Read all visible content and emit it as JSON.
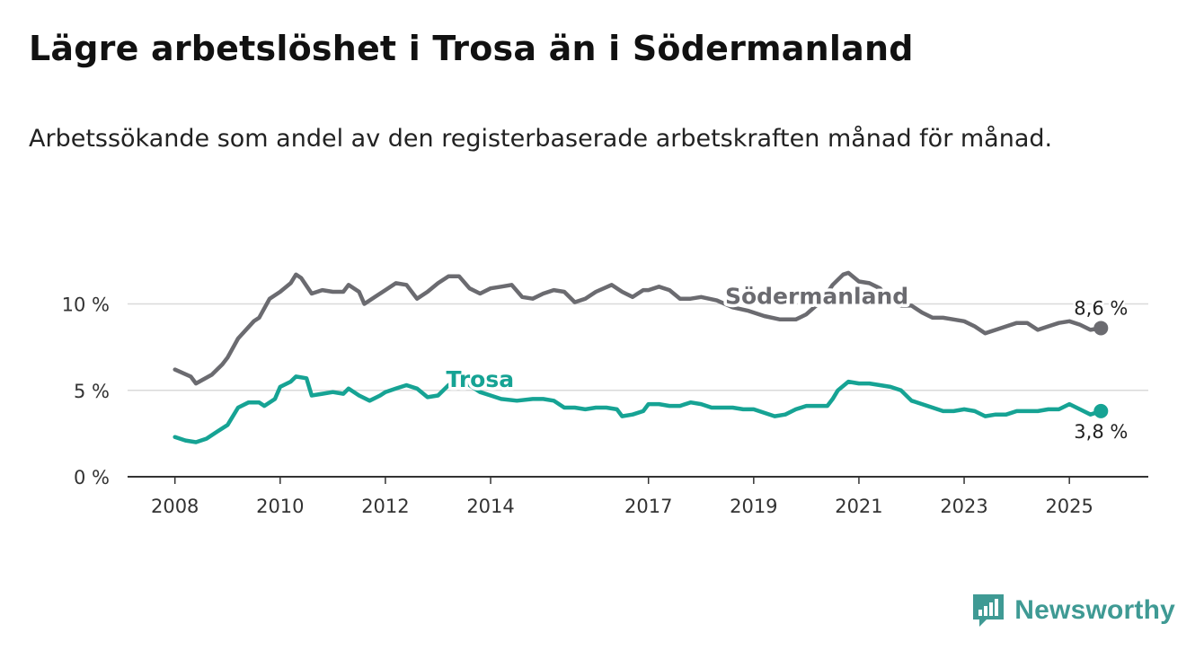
{
  "header": {
    "title": "Lägre arbetslöshet i Trosa än i Södermanland",
    "subtitle": "Arbetssökande som andel av den registerbaserade arbetskraften månad för månad."
  },
  "brand": {
    "name": "Newsworthy",
    "icon": "newsworthy-chart-icon",
    "color": "#3f9a94"
  },
  "chart_data": {
    "type": "line",
    "title": "Lägre arbetslöshet i Trosa än i Södermanland",
    "subtitle": "Arbetssökande som andel av den registerbaserade arbetskraften månad för månad.",
    "xlabel": "",
    "ylabel": "",
    "x_ticks": [
      2008,
      2010,
      2012,
      2014,
      2017,
      2019,
      2021,
      2023,
      2025
    ],
    "x_tick_labels": [
      "2008",
      "2010",
      "2012",
      "2014",
      "2017",
      "2019",
      "2021",
      "2023",
      "2025"
    ],
    "y_ticks": [
      0,
      5,
      10
    ],
    "y_tick_labels": [
      "0 %",
      "5 %",
      "10 %"
    ],
    "xlim": [
      2007.1,
      2026.5
    ],
    "ylim": [
      0,
      12
    ],
    "grid": true,
    "legend": "inline labels",
    "series": [
      {
        "name": "Södermanland",
        "color": "#6b6b70",
        "end_label": "8,6 %",
        "points": [
          [
            2008.0,
            6.2
          ],
          [
            2008.3,
            5.8
          ],
          [
            2008.4,
            5.4
          ],
          [
            2008.7,
            5.9
          ],
          [
            2008.9,
            6.5
          ],
          [
            2009.0,
            6.9
          ],
          [
            2009.2,
            8.0
          ],
          [
            2009.5,
            9.0
          ],
          [
            2009.6,
            9.2
          ],
          [
            2009.8,
            10.3
          ],
          [
            2010.0,
            10.7
          ],
          [
            2010.2,
            11.2
          ],
          [
            2010.3,
            11.7
          ],
          [
            2010.4,
            11.5
          ],
          [
            2010.6,
            10.6
          ],
          [
            2010.8,
            10.8
          ],
          [
            2011.0,
            10.7
          ],
          [
            2011.2,
            10.7
          ],
          [
            2011.3,
            11.1
          ],
          [
            2011.5,
            10.7
          ],
          [
            2011.6,
            10.0
          ],
          [
            2011.8,
            10.4
          ],
          [
            2012.0,
            10.8
          ],
          [
            2012.2,
            11.2
          ],
          [
            2012.4,
            11.1
          ],
          [
            2012.6,
            10.3
          ],
          [
            2012.8,
            10.7
          ],
          [
            2013.0,
            11.2
          ],
          [
            2013.2,
            11.6
          ],
          [
            2013.4,
            11.6
          ],
          [
            2013.6,
            10.9
          ],
          [
            2013.8,
            10.6
          ],
          [
            2014.0,
            10.9
          ],
          [
            2014.2,
            11.0
          ],
          [
            2014.4,
            11.1
          ],
          [
            2014.6,
            10.4
          ],
          [
            2014.8,
            10.3
          ],
          [
            2015.0,
            10.6
          ],
          [
            2015.2,
            10.8
          ],
          [
            2015.4,
            10.7
          ],
          [
            2015.6,
            10.1
          ],
          [
            2015.8,
            10.3
          ],
          [
            2016.0,
            10.7
          ],
          [
            2016.3,
            11.1
          ],
          [
            2016.5,
            10.7
          ],
          [
            2016.7,
            10.4
          ],
          [
            2016.9,
            10.8
          ],
          [
            2017.0,
            10.8
          ],
          [
            2017.2,
            11.0
          ],
          [
            2017.4,
            10.8
          ],
          [
            2017.6,
            10.3
          ],
          [
            2017.8,
            10.3
          ],
          [
            2018.0,
            10.4
          ],
          [
            2018.3,
            10.2
          ],
          [
            2018.6,
            9.8
          ],
          [
            2018.9,
            9.6
          ],
          [
            2019.2,
            9.3
          ],
          [
            2019.5,
            9.1
          ],
          [
            2019.8,
            9.1
          ],
          [
            2020.0,
            9.4
          ],
          [
            2020.3,
            10.2
          ],
          [
            2020.5,
            11.1
          ],
          [
            2020.7,
            11.7
          ],
          [
            2020.8,
            11.8
          ],
          [
            2021.0,
            11.3
          ],
          [
            2021.2,
            11.2
          ],
          [
            2021.4,
            10.9
          ],
          [
            2021.6,
            10.2
          ],
          [
            2021.8,
            9.9
          ],
          [
            2022.0,
            9.9
          ],
          [
            2022.2,
            9.5
          ],
          [
            2022.4,
            9.2
          ],
          [
            2022.6,
            9.2
          ],
          [
            2022.8,
            9.1
          ],
          [
            2023.0,
            9.0
          ],
          [
            2023.2,
            8.7
          ],
          [
            2023.4,
            8.3
          ],
          [
            2023.6,
            8.5
          ],
          [
            2023.8,
            8.7
          ],
          [
            2024.0,
            8.9
          ],
          [
            2024.2,
            8.9
          ],
          [
            2024.4,
            8.5
          ],
          [
            2024.6,
            8.7
          ],
          [
            2024.8,
            8.9
          ],
          [
            2025.0,
            9.0
          ],
          [
            2025.2,
            8.8
          ],
          [
            2025.4,
            8.5
          ],
          [
            2025.6,
            8.6
          ]
        ]
      },
      {
        "name": "Trosa",
        "color": "#16a394",
        "end_label": "3,8 %",
        "points": [
          [
            2008.0,
            2.3
          ],
          [
            2008.2,
            2.1
          ],
          [
            2008.4,
            2.0
          ],
          [
            2008.6,
            2.2
          ],
          [
            2008.8,
            2.6
          ],
          [
            2009.0,
            3.0
          ],
          [
            2009.2,
            4.0
          ],
          [
            2009.4,
            4.3
          ],
          [
            2009.6,
            4.3
          ],
          [
            2009.7,
            4.1
          ],
          [
            2009.9,
            4.5
          ],
          [
            2010.0,
            5.2
          ],
          [
            2010.2,
            5.5
          ],
          [
            2010.3,
            5.8
          ],
          [
            2010.5,
            5.7
          ],
          [
            2010.6,
            4.7
          ],
          [
            2010.8,
            4.8
          ],
          [
            2011.0,
            4.9
          ],
          [
            2011.2,
            4.8
          ],
          [
            2011.3,
            5.1
          ],
          [
            2011.5,
            4.7
          ],
          [
            2011.7,
            4.4
          ],
          [
            2011.9,
            4.7
          ],
          [
            2012.0,
            4.9
          ],
          [
            2012.2,
            5.1
          ],
          [
            2012.4,
            5.3
          ],
          [
            2012.6,
            5.1
          ],
          [
            2012.8,
            4.6
          ],
          [
            2013.0,
            4.7
          ],
          [
            2013.2,
            5.3
          ],
          [
            2013.4,
            5.7
          ],
          [
            2013.6,
            5.3
          ],
          [
            2013.8,
            4.9
          ],
          [
            2014.0,
            4.7
          ],
          [
            2014.2,
            4.5
          ],
          [
            2014.5,
            4.4
          ],
          [
            2014.8,
            4.5
          ],
          [
            2015.0,
            4.5
          ],
          [
            2015.2,
            4.4
          ],
          [
            2015.4,
            4.0
          ],
          [
            2015.6,
            4.0
          ],
          [
            2015.8,
            3.9
          ],
          [
            2016.0,
            4.0
          ],
          [
            2016.2,
            4.0
          ],
          [
            2016.4,
            3.9
          ],
          [
            2016.5,
            3.5
          ],
          [
            2016.7,
            3.6
          ],
          [
            2016.9,
            3.8
          ],
          [
            2017.0,
            4.2
          ],
          [
            2017.2,
            4.2
          ],
          [
            2017.4,
            4.1
          ],
          [
            2017.6,
            4.1
          ],
          [
            2017.8,
            4.3
          ],
          [
            2018.0,
            4.2
          ],
          [
            2018.2,
            4.0
          ],
          [
            2018.4,
            4.0
          ],
          [
            2018.6,
            4.0
          ],
          [
            2018.8,
            3.9
          ],
          [
            2019.0,
            3.9
          ],
          [
            2019.2,
            3.7
          ],
          [
            2019.4,
            3.5
          ],
          [
            2019.6,
            3.6
          ],
          [
            2019.8,
            3.9
          ],
          [
            2020.0,
            4.1
          ],
          [
            2020.2,
            4.1
          ],
          [
            2020.4,
            4.1
          ],
          [
            2020.5,
            4.5
          ],
          [
            2020.6,
            5.0
          ],
          [
            2020.8,
            5.5
          ],
          [
            2021.0,
            5.4
          ],
          [
            2021.2,
            5.4
          ],
          [
            2021.4,
            5.3
          ],
          [
            2021.6,
            5.2
          ],
          [
            2021.8,
            5.0
          ],
          [
            2022.0,
            4.4
          ],
          [
            2022.2,
            4.2
          ],
          [
            2022.4,
            4.0
          ],
          [
            2022.6,
            3.8
          ],
          [
            2022.8,
            3.8
          ],
          [
            2023.0,
            3.9
          ],
          [
            2023.2,
            3.8
          ],
          [
            2023.4,
            3.5
          ],
          [
            2023.6,
            3.6
          ],
          [
            2023.8,
            3.6
          ],
          [
            2024.0,
            3.8
          ],
          [
            2024.2,
            3.8
          ],
          [
            2024.4,
            3.8
          ],
          [
            2024.6,
            3.9
          ],
          [
            2024.8,
            3.9
          ],
          [
            2025.0,
            4.2
          ],
          [
            2025.2,
            3.9
          ],
          [
            2025.4,
            3.6
          ],
          [
            2025.6,
            3.8
          ]
        ]
      }
    ]
  }
}
